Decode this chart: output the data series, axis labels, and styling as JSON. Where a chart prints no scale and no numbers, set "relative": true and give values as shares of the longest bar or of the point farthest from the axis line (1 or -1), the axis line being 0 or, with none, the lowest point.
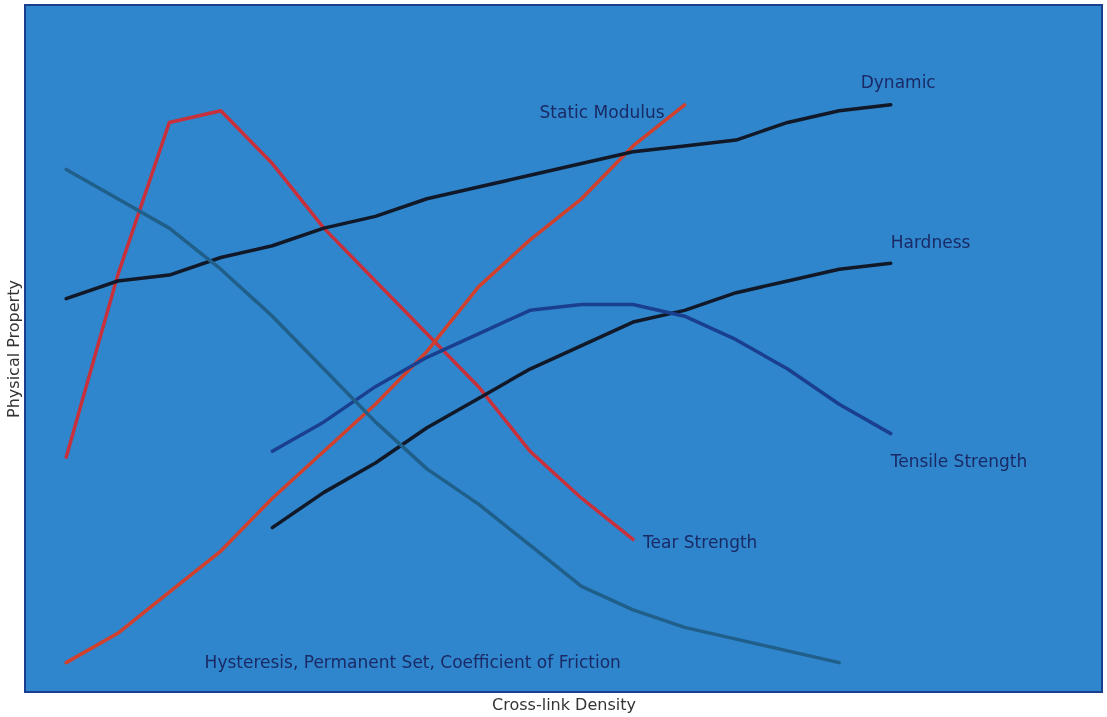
{
  "chart_data": {
    "type": "line",
    "relative": true,
    "xlabel": "Cross-link Density",
    "ylabel": "Physical Property",
    "legend": false,
    "marker": "none",
    "line_style": "solid",
    "categories": [
      null,
      null,
      null,
      null,
      null,
      null,
      null,
      null,
      null,
      null,
      null,
      null,
      null,
      null,
      null,
      null,
      null
    ],
    "series": [
      {
        "name": "Tear Strength",
        "color": "#c8303c",
        "values": [
          0.4,
          0.71,
          0.97,
          0.99,
          0.9,
          0.79,
          0.7,
          0.61,
          0.52,
          0.41,
          0.33,
          0.26,
          null,
          null,
          null,
          null,
          null
        ]
      },
      {
        "name": "Static Modulus",
        "color": "#d0402c",
        "values": [
          0.05,
          0.1,
          0.17,
          0.24,
          0.33,
          0.41,
          0.49,
          0.58,
          0.69,
          0.77,
          0.84,
          0.93,
          1.0,
          null,
          null,
          null,
          null
        ]
      },
      {
        "name": "Dynamic",
        "color": "#111827",
        "values": [
          0.67,
          0.7,
          0.71,
          0.74,
          0.76,
          0.79,
          0.81,
          0.84,
          0.86,
          0.88,
          0.9,
          0.92,
          0.93,
          0.94,
          0.97,
          0.99,
          1.0
        ]
      },
      {
        "name": "Hardness",
        "color": "#111827",
        "values": [
          null,
          null,
          null,
          null,
          0.28,
          0.34,
          0.39,
          0.45,
          0.5,
          0.55,
          0.59,
          0.63,
          0.65,
          0.68,
          0.7,
          0.72,
          0.73
        ]
      },
      {
        "name": "Tensile Strength",
        "color": "#1a3f8f",
        "values": [
          null,
          null,
          null,
          null,
          0.41,
          0.46,
          0.52,
          0.57,
          0.61,
          0.65,
          0.66,
          0.66,
          0.64,
          0.6,
          0.55,
          0.49,
          0.44
        ]
      },
      {
        "name": "Hysteresis, Permanent Set, Coefficient of Friction",
        "color": "#1f5f8a",
        "values": [
          0.89,
          0.84,
          0.79,
          0.72,
          0.64,
          0.55,
          0.46,
          0.38,
          0.32,
          0.25,
          0.18,
          0.14,
          0.11,
          0.09,
          0.07,
          0.05,
          null
        ]
      }
    ]
  }
}
